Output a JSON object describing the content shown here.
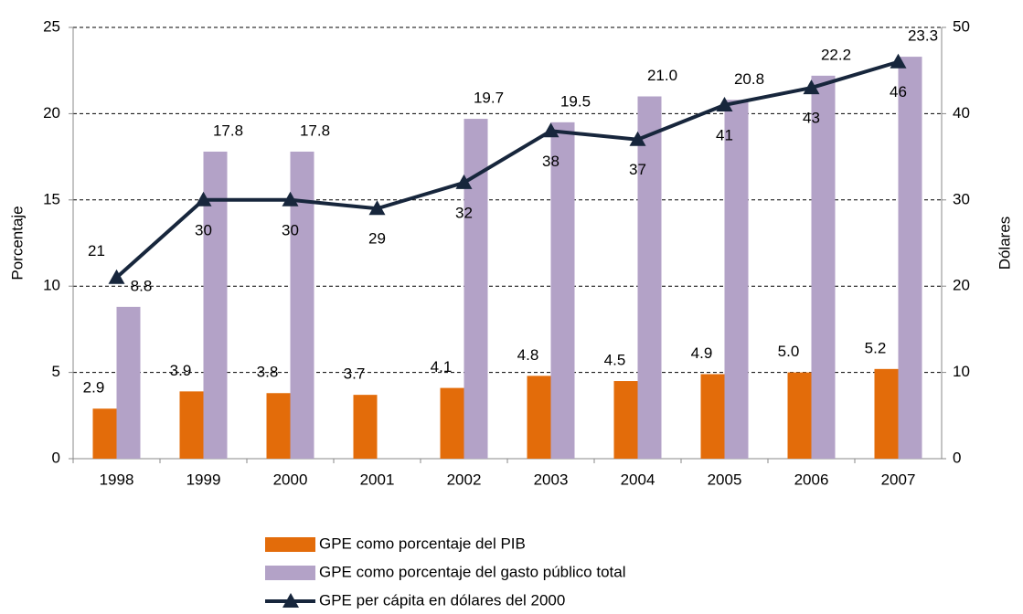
{
  "chart_data": {
    "type": "bar",
    "categories": [
      "1998",
      "1999",
      "2000",
      "2001",
      "2002",
      "2003",
      "2004",
      "2005",
      "2006",
      "2007"
    ],
    "ylabel": "Porcentaje",
    "y2label": "Dólares",
    "ylim": [
      0,
      25
    ],
    "yticks": [
      0,
      5,
      10,
      15,
      20,
      25
    ],
    "y2lim": [
      0,
      50
    ],
    "y2ticks": [
      0,
      10,
      20,
      30,
      40,
      50
    ],
    "grid": true,
    "legend": "bottom",
    "series": [
      {
        "name": "GPE como porcentaje del PIB",
        "type": "bar",
        "color": "#e36c0a",
        "values": [
          2.9,
          3.9,
          3.8,
          3.7,
          4.1,
          4.8,
          4.5,
          4.9,
          5.0,
          5.2
        ],
        "value_labels": [
          "2.9",
          "3.9",
          "3.8",
          "3.7",
          "4.1",
          "4.8",
          "4.5",
          "4.9",
          "5.0",
          "5.2"
        ]
      },
      {
        "name": "GPE como porcentaje del gasto público total",
        "type": "bar",
        "color": "#b3a2c7",
        "values": [
          8.8,
          17.8,
          17.8,
          null,
          19.7,
          19.5,
          21.0,
          20.8,
          22.2,
          23.3
        ],
        "value_labels": [
          "8.8",
          "17.8",
          "17.8",
          null,
          "19.7",
          "19.5",
          "21.0",
          "20.8",
          "22.2",
          "23.3"
        ]
      },
      {
        "name": "GPE per cápita en dólares del 2000",
        "type": "line",
        "axis": "y2",
        "color": "#17263c",
        "values": [
          21,
          30,
          30,
          29,
          32,
          38,
          37,
          41,
          43,
          46
        ]
      }
    ]
  }
}
